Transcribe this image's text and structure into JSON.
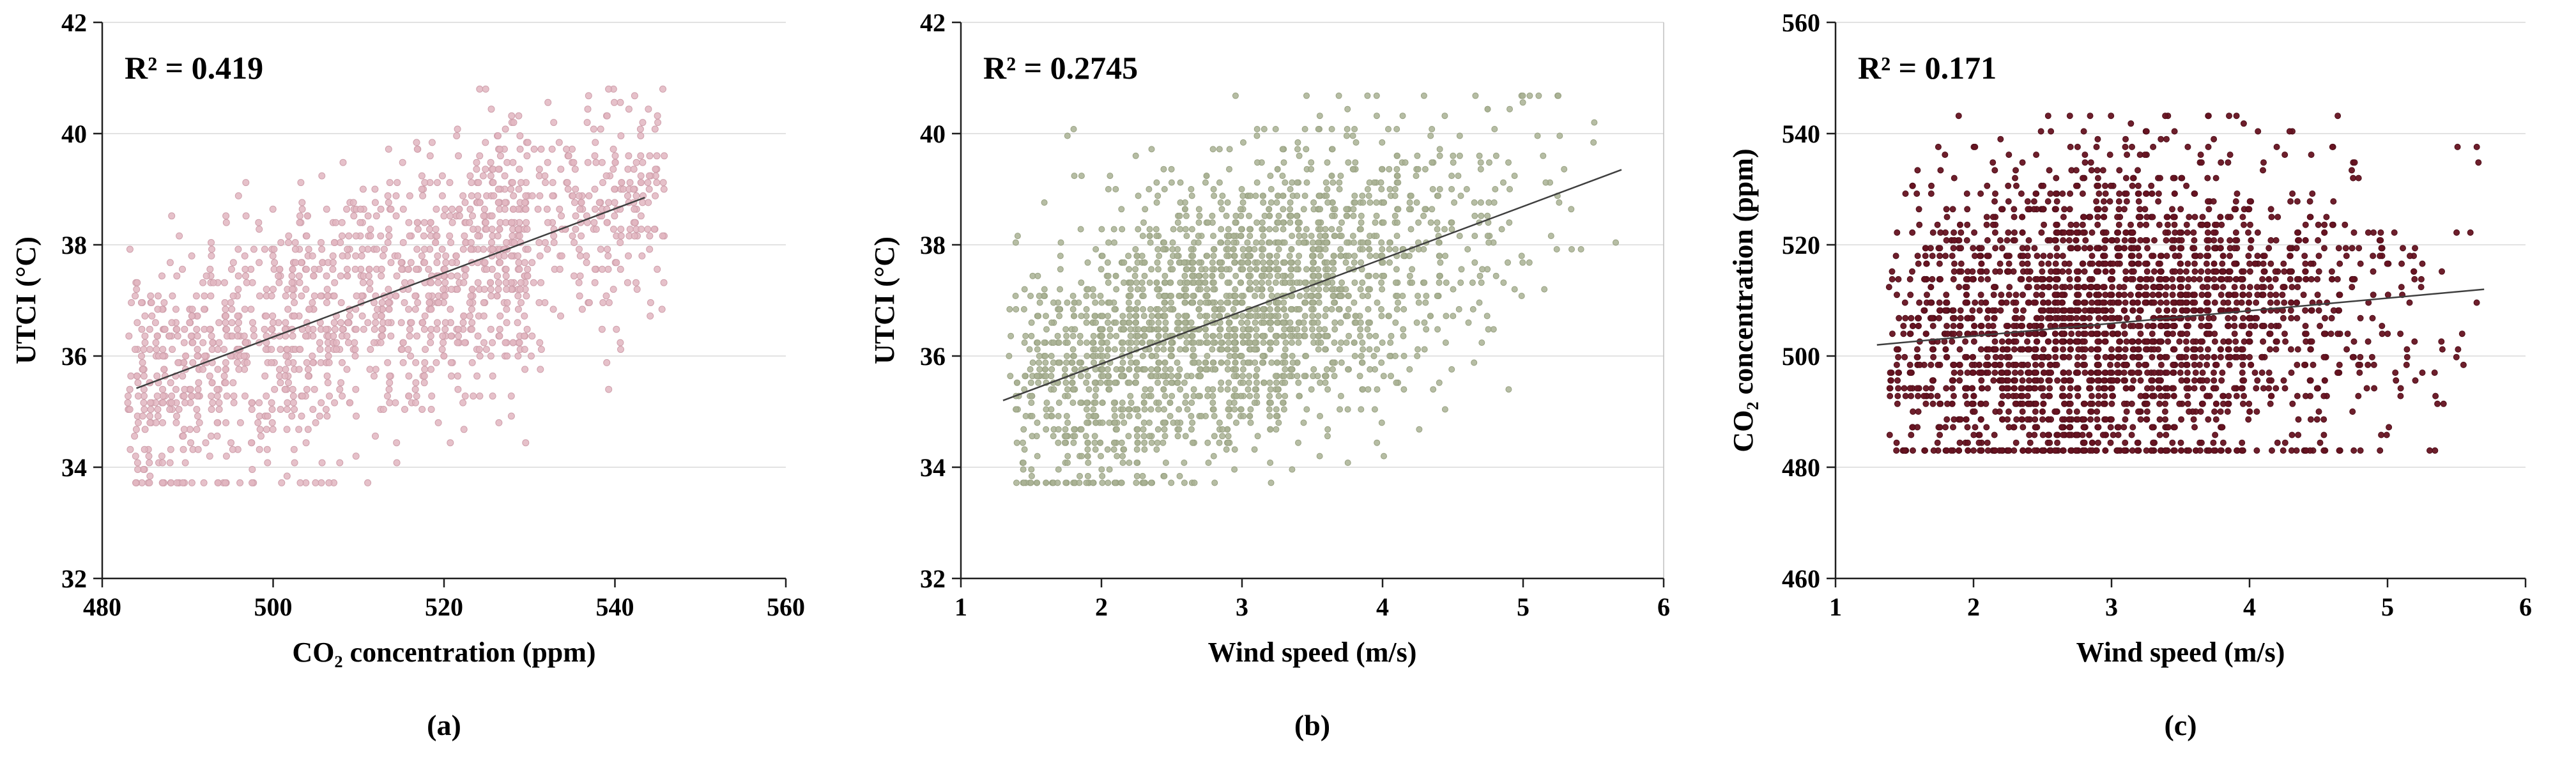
{
  "figure": {
    "description": "Three scatter plots with linear trendlines and R-squared annotations",
    "background_color": "#FFFFFF",
    "gridline_color": "#D9D9D9",
    "axis_color": "#1F1F1F"
  },
  "chart_data": [
    {
      "type": "scatter",
      "panel_label": "(a)",
      "r_squared_label": "R² = 0.419",
      "r_squared": 0.419,
      "xlabel": "CO₂ concentration  (ppm)",
      "ylabel": "UTCI (°C)",
      "xlim": [
        480,
        560
      ],
      "ylim": [
        32,
        42
      ],
      "xticks": [
        480,
        500,
        520,
        540,
        560
      ],
      "yticks": [
        32,
        34,
        36,
        38,
        40,
        42
      ],
      "grid": "horizontal",
      "legend": "none",
      "point_color": "#E2B6C1",
      "point_stroke": "#CFA0AC",
      "point_opacity": 0.85,
      "point_radius": 5,
      "right_border": false,
      "trendline": {
        "color": "#3F3F3F",
        "x": [
          484,
          543.5
        ],
        "y": [
          35.42,
          38.85
        ]
      },
      "scatter_generator": {
        "seed": 101,
        "n": 1500,
        "x_dist": {
          "type": "mixture_uniform",
          "segments": [
            [
              483,
              530,
              0.78
            ],
            [
              524,
              546,
              0.22
            ]
          ]
        },
        "x_quantum": 0.8,
        "x_jitter": 0.22,
        "noise_sd": 1.15,
        "y_quantum": 0.12,
        "y_clip": [
          33.7,
          40.75
        ]
      }
    },
    {
      "type": "scatter",
      "panel_label": "(b)",
      "r_squared_label": "R² = 0.2745",
      "r_squared": 0.2745,
      "xlabel": "Wind speed (m/s)",
      "ylabel": "UTCI (°C)",
      "xlim": [
        1,
        6
      ],
      "ylim": [
        32,
        42
      ],
      "xticks": [
        1,
        2,
        3,
        4,
        5,
        6
      ],
      "yticks": [
        32,
        34,
        36,
        38,
        40,
        42
      ],
      "grid": "horizontal",
      "legend": "none",
      "point_color": "#A9B194",
      "point_stroke": "#98A182",
      "point_opacity": 0.85,
      "point_radius": 4.5,
      "right_border": true,
      "trendline": {
        "color": "#3F3F3F",
        "x": [
          1.3,
          5.7
        ],
        "y": [
          35.2,
          39.35
        ]
      },
      "scatter_generator": {
        "seed": 202,
        "n": 2200,
        "x_dist": {
          "type": "normal",
          "mean": 2.85,
          "sd": 0.95,
          "min": 1.35,
          "max": 5.65
        },
        "x_quantum": 0.05,
        "x_jitter": 0.012,
        "noise_sd": 1.3,
        "y_quantum": 0.12,
        "y_clip": [
          33.75,
          40.7
        ]
      }
    },
    {
      "type": "scatter",
      "panel_label": "(c)",
      "r_squared_label": "R² = 0.171",
      "r_squared": 0.171,
      "xlabel": "Wind speed (m/s)",
      "ylabel": "CO₂ concentration  (ppm)",
      "xlim": [
        1,
        6
      ],
      "ylim": [
        460,
        560
      ],
      "xticks": [
        1,
        2,
        3,
        4,
        5,
        6
      ],
      "yticks": [
        460,
        480,
        500,
        520,
        540,
        560
      ],
      "grid": "horizontal",
      "legend": "none",
      "point_color": "#661321",
      "point_stroke": "#4F0E19",
      "point_opacity": 0.95,
      "point_radius": 4.5,
      "right_border": false,
      "trendline": {
        "color": "#3F3F3F",
        "x": [
          1.3,
          5.7
        ],
        "y": [
          502,
          512
        ]
      },
      "scatter_generator": {
        "seed": 303,
        "n": 2600,
        "x_dist": {
          "type": "normal",
          "mean": 2.9,
          "sd": 1.0,
          "min": 1.4,
          "max": 5.65
        },
        "x_quantum": 0.05,
        "x_jitter": 0.012,
        "noise_sd": 14,
        "y_quantum": 1.4,
        "y_clip": [
          483,
          542.5
        ]
      }
    }
  ]
}
